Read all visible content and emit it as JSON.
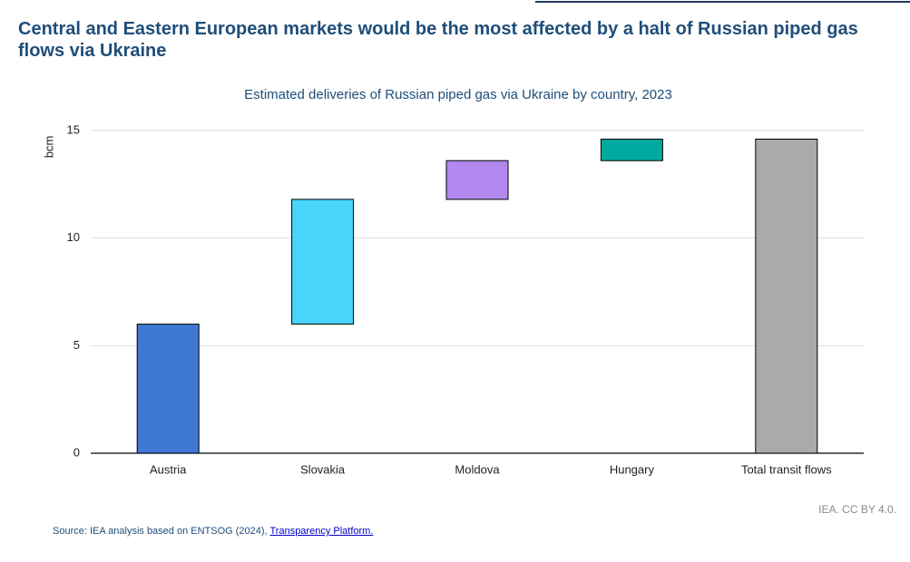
{
  "chart_data": {
    "type": "waterfall",
    "title": "Central and Eastern European markets would be the most affected by a halt of Russian piped gas flows via Ukraine",
    "subtitle": "Estimated deliveries of Russian piped gas via Ukraine by country, 2023",
    "y_label": "bcm",
    "categories": [
      "Austria",
      "Slovakia",
      "Moldova",
      "Hungary",
      "Total transit flows"
    ],
    "values": [
      6.0,
      5.8,
      1.8,
      1.0,
      14.6
    ],
    "colors": [
      "#3e78d4",
      "#48d4fb",
      "#b388ee",
      "#00a99d",
      "#aaaaaa"
    ],
    "ylim": [
      0,
      15
    ],
    "yticks": [
      0,
      5,
      10,
      15
    ],
    "grid": true,
    "credit": "IEA. CC BY 4.0.",
    "source": "Source: IEA analysis based on ENTSOG (2024), ",
    "source_link": "Transparency Platform."
  }
}
